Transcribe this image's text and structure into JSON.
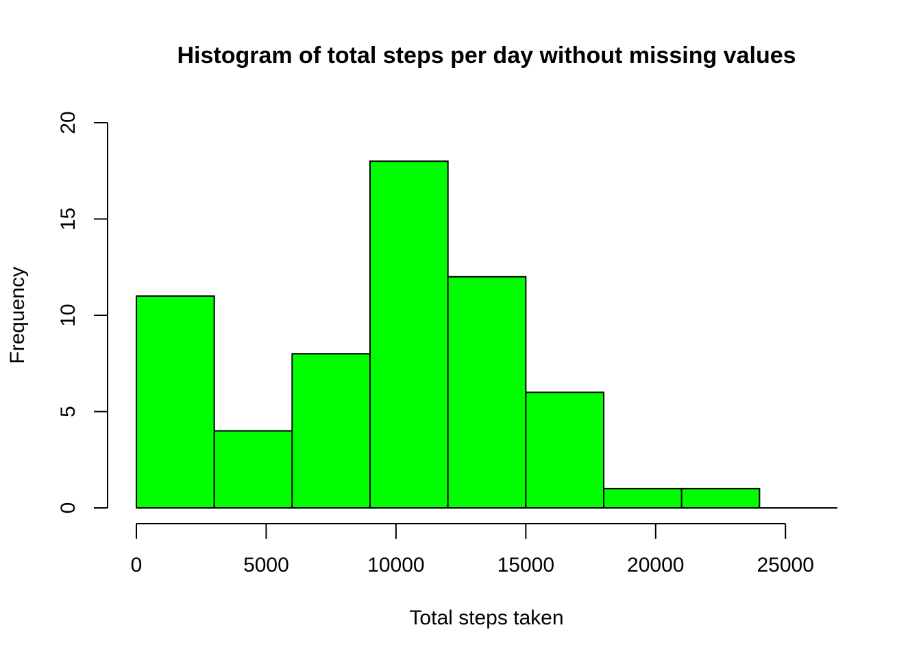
{
  "chart_data": {
    "type": "bar",
    "title": "Histogram of total steps per day without missing values",
    "xlabel": "Total steps taken",
    "ylabel": "Frequency",
    "bin_edges": [
      0,
      3000,
      6000,
      9000,
      12000,
      15000,
      18000,
      21000,
      24000
    ],
    "values": [
      11,
      4,
      8,
      18,
      12,
      6,
      1,
      1
    ],
    "xlim": [
      0,
      27000
    ],
    "ylim": [
      0,
      20
    ],
    "x_ticks": [
      0,
      5000,
      10000,
      15000,
      20000,
      25000
    ],
    "y_ticks": [
      0,
      5,
      10,
      15,
      20
    ],
    "bar_color": "#00ff00",
    "edge_color": "#000000",
    "grid": false,
    "legend": "none"
  }
}
